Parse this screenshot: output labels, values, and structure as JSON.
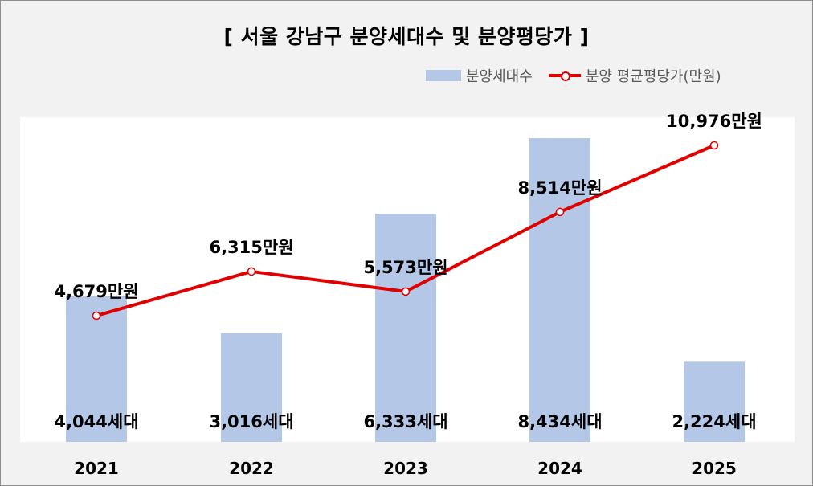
{
  "chart_data": {
    "type": "bar+line",
    "title": "[ 서울 강남구 분양세대수 및 분양평당가 ]",
    "categories": [
      "2021",
      "2022",
      "2023",
      "2024",
      "2025"
    ],
    "series": [
      {
        "name": "분양세대수",
        "type": "bar",
        "color": "#b4c7e7",
        "values": [
          4044,
          3016,
          6333,
          8434,
          2224
        ],
        "labels": [
          "4,044세대",
          "3,016세대",
          "6,333세대",
          "8,434세대",
          "2,224세대"
        ]
      },
      {
        "name": "분양 평균평당가(만원)",
        "type": "line",
        "color": "#e00000",
        "values": [
          4679,
          6315,
          5573,
          8514,
          10976
        ],
        "labels": [
          "4,679만원",
          "6,315만원",
          "5,573만원",
          "8,514만원",
          "10,976만원"
        ]
      }
    ],
    "legend_position": "top-right",
    "grid": false
  }
}
